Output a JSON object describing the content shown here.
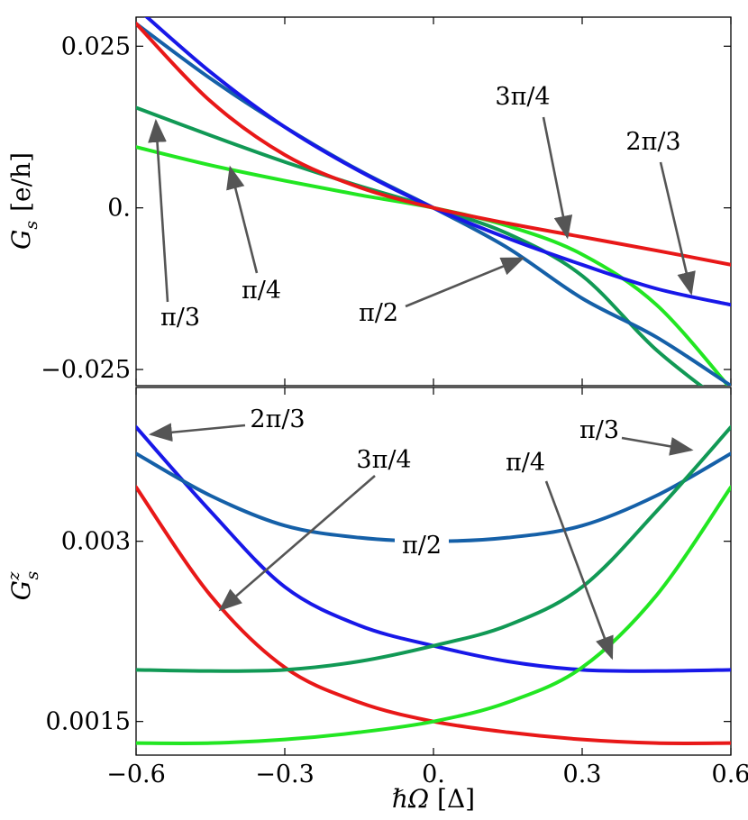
{
  "chart_data": [
    {
      "type": "line",
      "ylabel": "G_s [e/h]",
      "ylabel_parts": {
        "main": "G",
        "sub": "s",
        "unit": "[e/h]"
      },
      "xlim": [
        -0.6,
        0.6
      ],
      "ylim": [
        -0.0275,
        0.0295
      ],
      "x_ticks": [
        -0.6,
        -0.3,
        0.0,
        0.3,
        0.6
      ],
      "y_ticks": [
        {
          "value": 0.025,
          "label": "0.025"
        },
        {
          "value": 0.0,
          "label": "0."
        },
        {
          "value": -0.025,
          "label": "−0.025"
        }
      ],
      "x_tick_labels_shown": false,
      "series": [
        {
          "name": "π/4",
          "color": "#22e622",
          "x": [
            -0.6,
            -0.45,
            -0.3,
            -0.15,
            0.0,
            0.15,
            0.3,
            0.45,
            0.6
          ],
          "y": [
            0.0094,
            0.0066,
            0.0042,
            0.002,
            0.0,
            -0.0028,
            -0.0072,
            -0.015,
            -0.028
          ]
        },
        {
          "name": "π/3",
          "color": "#119955",
          "x": [
            -0.6,
            -0.45,
            -0.3,
            -0.15,
            0.0,
            0.15,
            0.3,
            0.45,
            0.6
          ],
          "y": [
            0.0155,
            0.0112,
            0.0071,
            0.0034,
            0.0,
            -0.004,
            -0.0105,
            -0.022,
            -0.031
          ]
        },
        {
          "name": "π/2",
          "color": "#1560a8",
          "x": [
            -0.6,
            -0.45,
            -0.3,
            -0.15,
            0.0,
            0.15,
            0.3,
            0.45,
            0.6
          ],
          "y": [
            0.0285,
            0.02,
            0.0125,
            0.0058,
            0.0,
            -0.0062,
            -0.014,
            -0.02,
            -0.0275
          ]
        },
        {
          "name": "2π/3",
          "color": "#1818e8",
          "x": [
            -0.6,
            -0.45,
            -0.3,
            -0.15,
            0.0,
            0.15,
            0.3,
            0.45,
            0.6
          ],
          "y": [
            0.031,
            0.021,
            0.0125,
            0.0057,
            0.0,
            -0.0047,
            -0.0088,
            -0.0125,
            -0.015
          ]
        },
        {
          "name": "3π/4",
          "color": "#e81818",
          "x": [
            -0.6,
            -0.45,
            -0.3,
            -0.15,
            0.0,
            0.15,
            0.3,
            0.45,
            0.6
          ],
          "y": [
            0.0285,
            0.0165,
            0.0082,
            0.0032,
            0.0,
            -0.0024,
            -0.0045,
            -0.0066,
            -0.0088
          ]
        }
      ],
      "annotations": [
        {
          "text": "3π/4",
          "x": 0.27,
          "y": -0.0045
        },
        {
          "text": "2π/3",
          "x": 0.52,
          "y": -0.0132
        },
        {
          "text": "π/2",
          "x": 0.18,
          "y": -0.0078
        },
        {
          "text": "π/4",
          "x": -0.41,
          "y": 0.0062
        },
        {
          "text": "π/3",
          "x": -0.56,
          "y": 0.0134
        }
      ]
    },
    {
      "type": "line",
      "ylabel": "G_s^z",
      "ylabel_parts": {
        "main": "G",
        "sub": "s",
        "sup": "z"
      },
      "xlabel": "ℏΩ [Δ]",
      "xlabel_parts": {
        "main": "ℏΩ",
        "unit": "[Δ]"
      },
      "xlim": [
        -0.6,
        0.6
      ],
      "ylim": [
        0.00122,
        0.00428
      ],
      "x_ticks": [
        {
          "value": -0.6,
          "label": "−0.6"
        },
        {
          "value": -0.3,
          "label": "−0.3"
        },
        {
          "value": 0.0,
          "label": "0."
        },
        {
          "value": 0.3,
          "label": "0.3"
        },
        {
          "value": 0.6,
          "label": "0.6"
        }
      ],
      "y_ticks": [
        {
          "value": 0.003,
          "label": "0.003"
        },
        {
          "value": 0.0015,
          "label": "0.0015"
        }
      ],
      "series": [
        {
          "name": "2π/3",
          "color": "#1818e8",
          "x": [
            -0.6,
            -0.45,
            -0.3,
            -0.15,
            0.0,
            0.15,
            0.3,
            0.45,
            0.6
          ],
          "y": [
            0.00395,
            0.00325,
            0.00262,
            0.0023,
            0.00213,
            0.002,
            0.00193,
            0.00192,
            0.00193
          ]
        },
        {
          "name": "π/2",
          "color": "#1560a8",
          "x": [
            -0.6,
            -0.45,
            -0.3,
            -0.15,
            0.0,
            0.15,
            0.3,
            0.45,
            0.6
          ],
          "y": [
            0.00373,
            0.00338,
            0.00313,
            0.00303,
            0.003,
            0.00303,
            0.00313,
            0.00338,
            0.00373
          ]
        },
        {
          "name": "3π/4",
          "color": "#e81818",
          "x": [
            -0.6,
            -0.45,
            -0.3,
            -0.15,
            0.0,
            0.15,
            0.3,
            0.45,
            0.6
          ],
          "y": [
            0.00345,
            0.00255,
            0.00195,
            0.00166,
            0.0015,
            0.00141,
            0.00135,
            0.00132,
            0.00132
          ]
        },
        {
          "name": "π/3",
          "color": "#119955",
          "x": [
            -0.6,
            -0.45,
            -0.3,
            -0.15,
            0.0,
            0.15,
            0.3,
            0.45,
            0.6
          ],
          "y": [
            0.00193,
            0.00192,
            0.00193,
            0.002,
            0.00213,
            0.0023,
            0.00262,
            0.00325,
            0.00395
          ]
        },
        {
          "name": "π/4",
          "color": "#22e622",
          "x": [
            -0.6,
            -0.45,
            -0.3,
            -0.15,
            0.0,
            0.15,
            0.3,
            0.45,
            0.6
          ],
          "y": [
            0.00132,
            0.00132,
            0.00135,
            0.00141,
            0.0015,
            0.00166,
            0.00195,
            0.00255,
            0.00345
          ]
        }
      ],
      "annotations": [
        {
          "text": "2π/3",
          "x": -0.57,
          "y": 0.00389
        },
        {
          "text": "3π/4",
          "x": -0.43,
          "y": 0.00243
        },
        {
          "text": "π/4",
          "x": 0.36,
          "y": 0.00203
        },
        {
          "text": "π/3",
          "x": 0.52,
          "y": 0.00376
        },
        {
          "text": "π/2",
          "x": -0.03,
          "y": 0.003
        }
      ]
    }
  ]
}
